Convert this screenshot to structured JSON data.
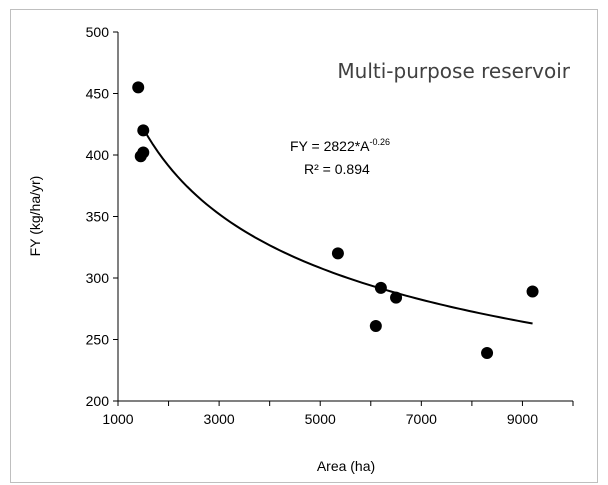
{
  "chart_data": {
    "type": "scatter",
    "title": "Multi-purpose reservoir",
    "xlabel": "Area (ha)",
    "ylabel": "FY (kg/ha/yr)",
    "xlim": [
      1000,
      10000
    ],
    "ylim": [
      200,
      500
    ],
    "xticks": [
      1000,
      3000,
      5000,
      7000,
      9000
    ],
    "yticks": [
      200,
      250,
      300,
      350,
      400,
      450,
      500
    ],
    "points": [
      {
        "x": 1400,
        "y": 455
      },
      {
        "x": 1500,
        "y": 420
      },
      {
        "x": 1500,
        "y": 402
      },
      {
        "x": 1450,
        "y": 399
      },
      {
        "x": 5350,
        "y": 320
      },
      {
        "x": 6200,
        "y": 292
      },
      {
        "x": 6500,
        "y": 284
      },
      {
        "x": 6100,
        "y": 261
      },
      {
        "x": 8300,
        "y": 239
      },
      {
        "x": 9200,
        "y": 289
      }
    ],
    "trendline": {
      "type": "power",
      "coefficient": 2822,
      "exponent": -0.26,
      "x_start": 1500,
      "x_end": 9200,
      "equation_prefix": "FY = 2822*A",
      "equation_exponent": "-0.26",
      "r_squared_label": "R² = 0.894"
    },
    "grid": false,
    "legend": "none"
  }
}
